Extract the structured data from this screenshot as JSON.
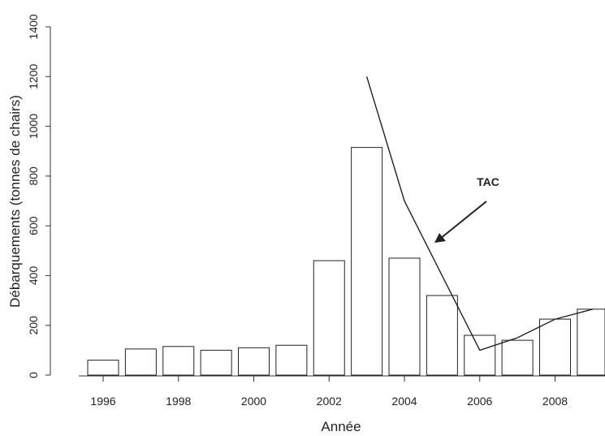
{
  "chart_data": {
    "type": "bar",
    "xlabel": "Année",
    "ylabel": "Débarquements (tonnes de chairs)",
    "ylim": [
      0,
      1400
    ],
    "yticks": [
      0,
      200,
      400,
      600,
      800,
      1000,
      1200,
      1400
    ],
    "xticks": [
      1996,
      1998,
      2000,
      2002,
      2004,
      2006,
      2008
    ],
    "grid": false,
    "categories": [
      1996,
      1997,
      1998,
      1999,
      2000,
      2001,
      2002,
      2003,
      2004,
      2005,
      2006,
      2007,
      2008,
      2009
    ],
    "series": [
      {
        "values": [
          60,
          105,
          115,
          100,
          110,
          120,
          460,
          915,
          470,
          320,
          160,
          140,
          225,
          265
        ]
      }
    ],
    "line": {
      "name": "TAC",
      "x": [
        2003,
        2004,
        2006,
        2007,
        2008,
        2009
      ],
      "y": [
        1200,
        700,
        100,
        150,
        225,
        265
      ]
    },
    "annotations": [
      {
        "text": "TAC",
        "arrow": true
      }
    ]
  }
}
